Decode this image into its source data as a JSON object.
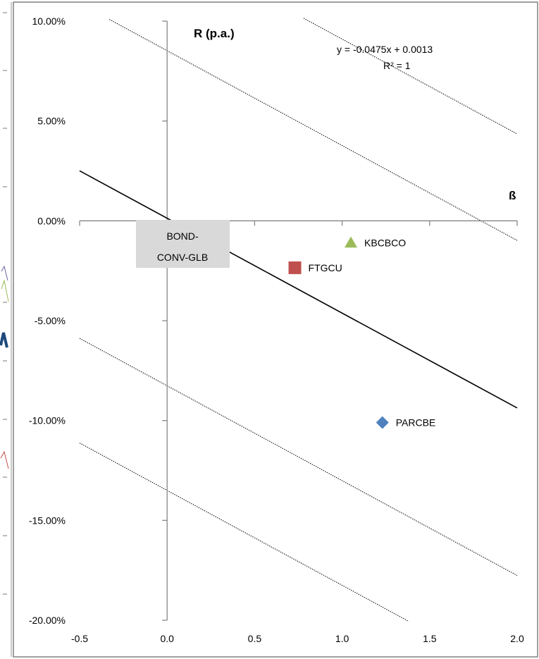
{
  "chart_data": {
    "type": "scatter",
    "axis_labels": {
      "y": "R (p.a.)",
      "x": "ß"
    },
    "xlim": [
      -0.5,
      2.0
    ],
    "ylim": [
      -0.2,
      0.1
    ],
    "x_ticks": [
      "-0.5",
      "0.0",
      "0.5",
      "1.0",
      "1.5",
      "2.0"
    ],
    "y_ticks": [
      "10.00%",
      "5.00%",
      "0.00%",
      "-5.00%",
      "-10.00%",
      "-15.00%",
      "-20.00%"
    ],
    "grid": false,
    "points": [
      {
        "label": "KBCBCO",
        "x": 1.05,
        "y": -0.011,
        "marker": "triangle",
        "color": "#9bbb59"
      },
      {
        "label": "FTGCU",
        "x": 0.73,
        "y": -0.0235,
        "marker": "square",
        "color": "#c0504d"
      },
      {
        "label": "PARCBE",
        "x": 1.23,
        "y": -0.101,
        "marker": "diamond",
        "color": "#4f81bd"
      }
    ],
    "trendline": {
      "equation": "y = -0.0475x + 0.0013",
      "r_squared": "R² = 1",
      "slope": -0.0475,
      "intercept": 0.0013,
      "x_range": [
        -0.5,
        2.0
      ]
    },
    "band_lines": [
      {
        "x_range": [
          -0.33,
          2.0
        ],
        "intercept": 0.0852,
        "slope": -0.0475
      },
      {
        "x_range": [
          0.78,
          2.0
        ],
        "intercept": 0.1385,
        "slope": -0.0475
      },
      {
        "x_range": [
          -0.5,
          2.0
        ],
        "intercept": -0.0826,
        "slope": -0.0475
      },
      {
        "x_range": [
          -0.5,
          1.38
        ],
        "intercept": -0.135,
        "slope": -0.0475
      }
    ],
    "origin_box": {
      "text_line1": "BOND-",
      "text_line2": "CONV-GLB",
      "fill": "#d9d9d9"
    }
  },
  "colors": {
    "axis": "#868686",
    "trend": "#000000",
    "frame": "#808080"
  }
}
